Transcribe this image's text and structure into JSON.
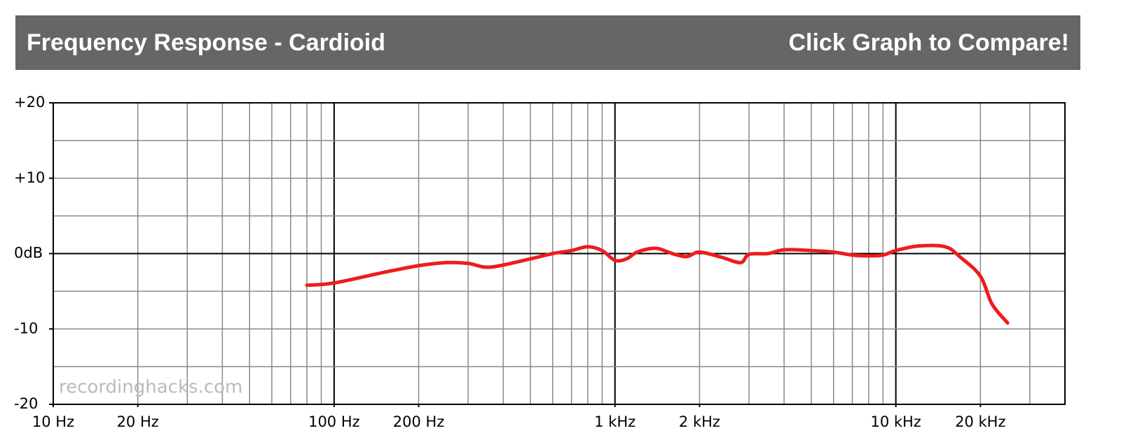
{
  "header": {
    "title": "Frequency Response - Cardioid",
    "action": "Click Graph to Compare!"
  },
  "chart_data": {
    "type": "line",
    "log_x": true,
    "grid": true,
    "watermark": "recordinghacks.com",
    "xlim": [
      10,
      40000
    ],
    "ylim": [
      -20,
      20
    ],
    "xticks": [
      {
        "value": 10,
        "label": "10 Hz"
      },
      {
        "value": 20,
        "label": "20 Hz"
      },
      {
        "value": 100,
        "label": "100 Hz"
      },
      {
        "value": 200,
        "label": "200 Hz"
      },
      {
        "value": 1000,
        "label": "1 kHz"
      },
      {
        "value": 2000,
        "label": "2 kHz"
      },
      {
        "value": 10000,
        "label": "10 kHz"
      },
      {
        "value": 20000,
        "label": "20 kHz"
      }
    ],
    "yticks": [
      {
        "value": 20,
        "label": "+20"
      },
      {
        "value": 10,
        "label": "+10"
      },
      {
        "value": 0,
        "label": "0dB"
      },
      -10,
      -20
    ],
    "xgrid": [
      20,
      30,
      40,
      50,
      60,
      70,
      80,
      90,
      100,
      200,
      300,
      400,
      500,
      600,
      700,
      800,
      900,
      1000,
      2000,
      3000,
      4000,
      5000,
      6000,
      7000,
      8000,
      9000,
      10000,
      20000,
      30000
    ],
    "ygrid": [
      -15,
      -10,
      -5,
      0,
      5,
      10,
      15
    ],
    "series": [
      {
        "name": "Cardioid",
        "color": "#ee1c1c",
        "x": [
          80,
          100,
          150,
          200,
          250,
          300,
          360,
          500,
          600,
          700,
          800,
          900,
          1000,
          1100,
          1200,
          1400,
          1600,
          1800,
          2000,
          2400,
          2800,
          3000,
          3500,
          4000,
          5000,
          6000,
          7000,
          8000,
          9000,
          10000,
          12000,
          15000,
          17000,
          20000,
          22000,
          25000
        ],
        "values": [
          -4.2,
          -3.9,
          -2.5,
          -1.6,
          -1.2,
          -1.3,
          -1.8,
          -0.7,
          0,
          0.4,
          0.9,
          0.4,
          -0.9,
          -0.7,
          0.2,
          0.7,
          0,
          -0.4,
          0.2,
          -0.5,
          -1.2,
          -0.1,
          0,
          0.5,
          0.4,
          0.2,
          -0.2,
          -0.3,
          -0.2,
          0.4,
          1.0,
          0.9,
          -0.5,
          -3.0,
          -6.7,
          -9.2
        ]
      }
    ]
  }
}
